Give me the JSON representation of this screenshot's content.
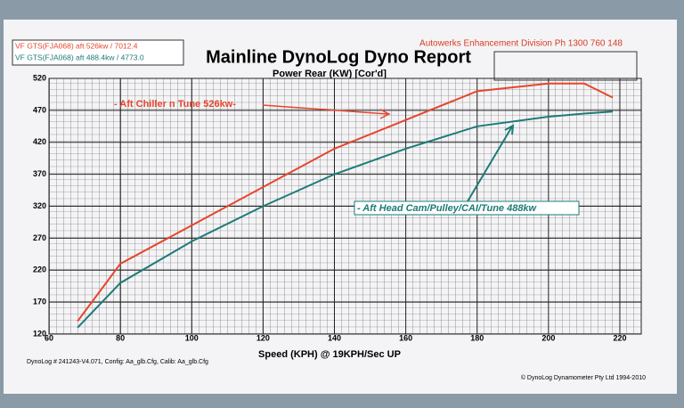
{
  "chart_data": {
    "type": "line",
    "header": "Autowerks Enhancement Division  Ph 1300 760 148",
    "title": "Mainline DynoLog Dyno Report",
    "subtitle": "Power Rear (KW) [Cor'd]",
    "x_label": "Speed (KPH) @ 19KPH/Sec UP",
    "footer_left": "DynoLog # 241243-V4.071,  Config: Aa_glb.Cfg,  Calib: Aa_glb.Cfg",
    "footer_right": "© DynoLog Dynamometer Pty Ltd 1994-2010",
    "annotations": [
      "- Aft Chiller  n Tune 526kw-",
      "- Aft Head Cam/Pulley/CAI/Tune 488kw"
    ],
    "x": [
      68,
      80,
      100,
      120,
      140,
      160,
      180,
      200,
      210,
      218
    ],
    "series": [
      {
        "name": "VF GTS(FJA068) aft  526kw / 7012.4",
        "color": "#e8452c",
        "values": [
          140,
          230,
          290,
          350,
          410,
          455,
          500,
          512,
          512,
          490
        ]
      },
      {
        "name": "VF GTS(FJA068) aft 488.4kw / 4773.0",
        "color": "#1d7b78",
        "values": [
          130,
          200,
          265,
          320,
          370,
          410,
          445,
          460,
          465,
          468
        ]
      }
    ],
    "xlim": [
      60,
      226
    ],
    "ylim": [
      120,
      520
    ],
    "xticks": [
      60,
      80,
      100,
      120,
      140,
      160,
      180,
      200,
      220
    ],
    "yticks": [
      120,
      170,
      220,
      270,
      320,
      370,
      420,
      470,
      520
    ],
    "grid": true
  }
}
